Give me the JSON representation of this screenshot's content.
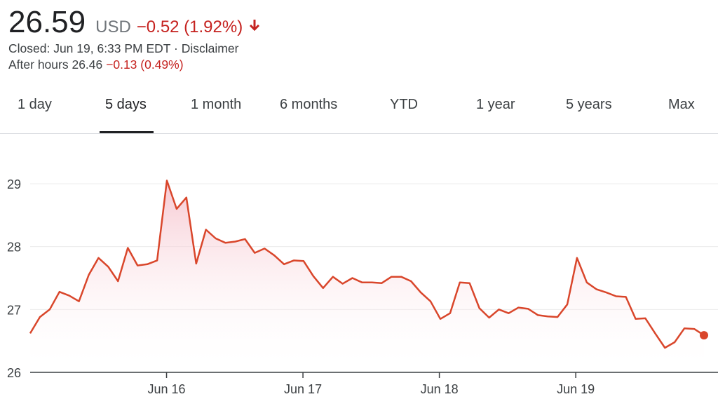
{
  "quote": {
    "price": "26.59",
    "currency": "USD",
    "change": "−0.52 (1.92%)",
    "closed_text": "Closed: Jun 19, 6:33 PM EDT · Disclaimer",
    "after_hours_label": "After hours 26.46",
    "after_hours_change": "−0.13 (0.49%)",
    "down_icon": "arrow-down-icon",
    "accent_color": "#c5221f"
  },
  "tabs": [
    {
      "label": "1 day",
      "active": false
    },
    {
      "label": "5 days",
      "active": true
    },
    {
      "label": "1 month",
      "active": false
    },
    {
      "label": "6 months",
      "active": false
    },
    {
      "label": "YTD",
      "active": false
    },
    {
      "label": "1 year",
      "active": false
    },
    {
      "label": "5 years",
      "active": false
    },
    {
      "label": "Max",
      "active": false
    }
  ],
  "chart_data": {
    "type": "area",
    "title": "",
    "xlabel": "",
    "ylabel": "",
    "ylim": [
      26,
      29.5
    ],
    "yticks": [
      26,
      27,
      28,
      29
    ],
    "xticks": [
      {
        "label": "Jun 16",
        "x": 10
      },
      {
        "label": "Jun 17",
        "x": 20
      },
      {
        "label": "Jun 18",
        "x": 30
      },
      {
        "label": "Jun 19",
        "x": 40
      }
    ],
    "xlim": [
      0,
      49.4
    ],
    "grid": true,
    "line_color": "#d9462b",
    "fill_color": "#f4b6c2",
    "series": [
      {
        "values": [
          26.62,
          26.88,
          27.0,
          27.28,
          27.22,
          27.13,
          27.55,
          27.82,
          27.68,
          27.45,
          27.98,
          27.7,
          27.72,
          27.78,
          29.05,
          28.6,
          28.78,
          27.73,
          28.27,
          28.13,
          28.06,
          28.08,
          28.12,
          27.9,
          27.97,
          27.86,
          27.72,
          27.78,
          27.77,
          27.53,
          27.34,
          27.52,
          27.41,
          27.5,
          27.43,
          27.43,
          27.42,
          27.52,
          27.52,
          27.45,
          27.27,
          27.13,
          26.85,
          26.94,
          27.43,
          27.42,
          27.02,
          26.87,
          27.0,
          26.94,
          27.03,
          27.01,
          26.91,
          26.89,
          26.88,
          27.08,
          27.82,
          27.43,
          27.32,
          27.27,
          27.21,
          27.2,
          26.85,
          26.86,
          26.62,
          26.39,
          26.48,
          26.7,
          26.69,
          26.59
        ]
      }
    ]
  }
}
